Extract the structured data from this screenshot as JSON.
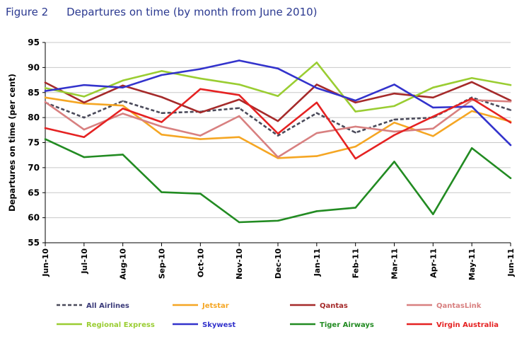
{
  "header": {
    "figure_number": "Figure 2",
    "title": "Departures on time (by month from June 2010)"
  },
  "chart_data": {
    "type": "line",
    "title": "Departures on time (by month from June 2010)",
    "xlabel": "",
    "ylabel": "Departures on time (per cent)",
    "ylim": [
      55,
      95
    ],
    "yticks": [
      55,
      60,
      65,
      70,
      75,
      80,
      85,
      90,
      95
    ],
    "grid": true,
    "legend_position": "bottom",
    "categories": [
      "Jun-10",
      "Jul-10",
      "Aug-10",
      "Sep-10",
      "Oct-10",
      "Nov-10",
      "Dec-10",
      "Jan-11",
      "Feb-11",
      "Mar-11",
      "Apr-11",
      "May-11",
      "Jun-11"
    ],
    "series": [
      {
        "name": "All Airlines",
        "color": "#4a4a5a",
        "dashed": true,
        "values": [
          83,
          80,
          83.3,
          80.9,
          81.2,
          81.9,
          76.4,
          80.9,
          77,
          79.6,
          80,
          84,
          81.5
        ]
      },
      {
        "name": "Jetstar",
        "color": "#f5a623",
        "values": [
          84,
          82.8,
          82.4,
          76.6,
          75.7,
          76.1,
          71.9,
          72.3,
          74.2,
          79,
          76.3,
          81.3,
          79.2
        ]
      },
      {
        "name": "Qantas",
        "color": "#a52a2a",
        "values": [
          87,
          83,
          86.4,
          84.1,
          81,
          83.6,
          79.3,
          86.6,
          83,
          84.8,
          84,
          87.1,
          83.4
        ]
      },
      {
        "name": "QantasLink",
        "color": "#d88080",
        "values": [
          83.1,
          77.6,
          80.8,
          78.2,
          76.4,
          80.3,
          72.1,
          76.9,
          78.2,
          77.2,
          77.8,
          83.5,
          83.2
        ]
      },
      {
        "name": "Regional Express",
        "color": "#9acd32",
        "values": [
          85.9,
          84.2,
          87.4,
          89.3,
          87.8,
          86.6,
          84.3,
          91,
          81.2,
          82.3,
          86,
          87.9,
          86.5
        ]
      },
      {
        "name": "Skywest",
        "color": "#3333cc",
        "values": [
          85.3,
          86.5,
          86,
          88.5,
          89.7,
          91.4,
          89.8,
          85.9,
          83.4,
          86.6,
          82,
          82.2,
          74.5
        ]
      },
      {
        "name": "Tiger Airways",
        "color": "#228b22",
        "values": [
          75.7,
          72.1,
          72.6,
          65.1,
          64.8,
          59.1,
          59.4,
          61.3,
          62,
          71.2,
          60.7,
          73.9,
          67.9
        ]
      },
      {
        "name": "Virgin Australia",
        "color": "#e52222",
        "values": [
          77.9,
          76.1,
          81.8,
          79.1,
          85.7,
          84.5,
          76.8,
          83,
          71.8,
          76.5,
          80.2,
          83.8,
          79
        ]
      }
    ]
  }
}
